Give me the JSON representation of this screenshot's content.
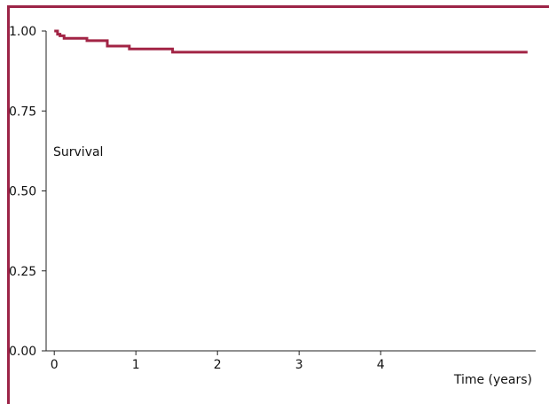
{
  "colors": {
    "frame": "#9c2447",
    "curve": "#a22445",
    "axis": "#222222"
  },
  "chart_data": {
    "type": "line",
    "title": "",
    "xlabel": "Time (years)",
    "ylabel": "Survival",
    "xlim": [
      -0.1,
      5.9
    ],
    "ylim": [
      0.0,
      1.0
    ],
    "x_ticks": [
      0,
      1,
      2,
      3,
      4
    ],
    "x_tick_labels": [
      "0",
      "1",
      "2",
      "3",
      "4"
    ],
    "y_ticks": [
      0.0,
      0.25,
      0.5,
      0.75,
      1.0
    ],
    "y_tick_labels": [
      "0.00",
      "0.25",
      "0.50",
      "0.75",
      "1.00"
    ],
    "grid": false,
    "legend": "none",
    "series": [
      {
        "step": "post",
        "x": [
          0.0,
          0.04,
          0.07,
          0.12,
          0.4,
          0.65,
          0.92,
          1.45,
          5.8
        ],
        "y": [
          1.0,
          0.99,
          0.985,
          0.977,
          0.97,
          0.953,
          0.944,
          0.934,
          0.934
        ]
      }
    ]
  }
}
